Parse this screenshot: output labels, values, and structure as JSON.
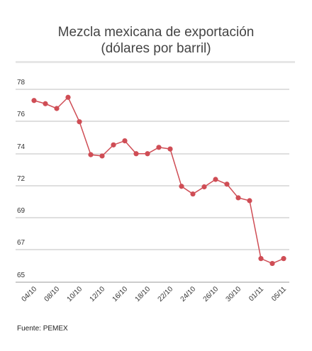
{
  "header": {
    "title_line1": "Mezcla mexicana de exportación",
    "title_line2": "(dólares por barril)"
  },
  "footer": {
    "source": "Fuente: PEMEX"
  },
  "colors": {
    "series": "#cf4d55",
    "grid": "#bfbfbf"
  },
  "chart_data": {
    "type": "line",
    "title": "Mezcla mexicana de exportación (dólares por barril)",
    "xlabel": "",
    "ylabel": "",
    "y_ticks": [
      78,
      76,
      74,
      72,
      69,
      67,
      65
    ],
    "x_tick_labels": [
      "04/10",
      "08/10",
      "10/10",
      "12/10",
      "16/10",
      "18/10",
      "22/10",
      "24/10",
      "26/10",
      "30/10",
      "01/11",
      "05/11"
    ],
    "x_tick_points": [
      0,
      2,
      4,
      6,
      8,
      10,
      12,
      14,
      16,
      18,
      20,
      22
    ],
    "grid": true,
    "series": [
      {
        "values": [
          77.3,
          77.1,
          76.8,
          77.5,
          75.97,
          73.95,
          73.87,
          74.55,
          74.8,
          74.01,
          74.01,
          74.4,
          74.3,
          71.95,
          71.23,
          71.9,
          72.4,
          72.1,
          70.87,
          70.6,
          66.45,
          66.15,
          66.45
        ]
      }
    ]
  }
}
